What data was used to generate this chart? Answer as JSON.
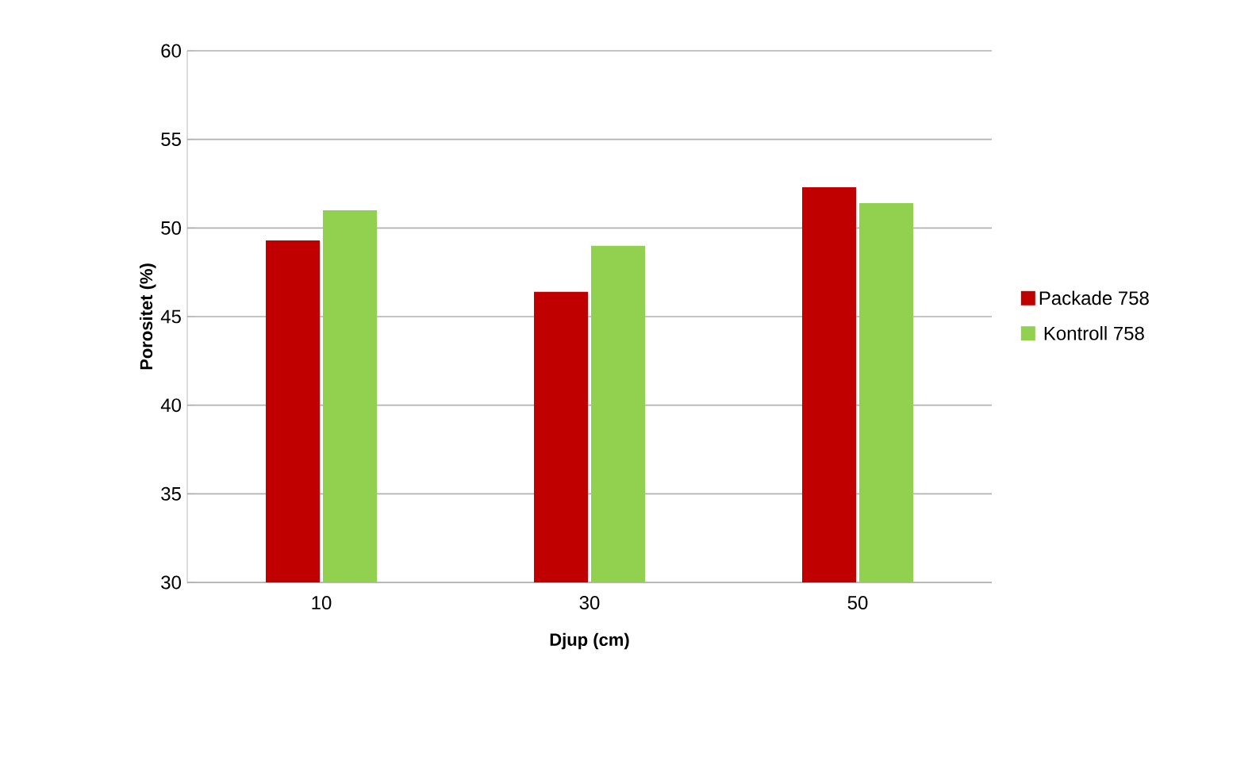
{
  "chart_data": {
    "type": "bar",
    "xlabel": "Djup (cm)",
    "ylabel": "Porositet (%)",
    "categories": [
      "10",
      "30",
      "50"
    ],
    "series": [
      {
        "name": "Packade 758",
        "color": "#c00000",
        "values": [
          49.3,
          46.4,
          52.3
        ]
      },
      {
        "name": "Kontroll 758",
        "color": "#92d050",
        "values": [
          51.0,
          49.0,
          51.4
        ]
      }
    ],
    "ylim": [
      30,
      60
    ],
    "yticks": [
      30,
      35,
      40,
      45,
      50,
      55,
      60
    ],
    "grid": "y",
    "legend": "right"
  }
}
